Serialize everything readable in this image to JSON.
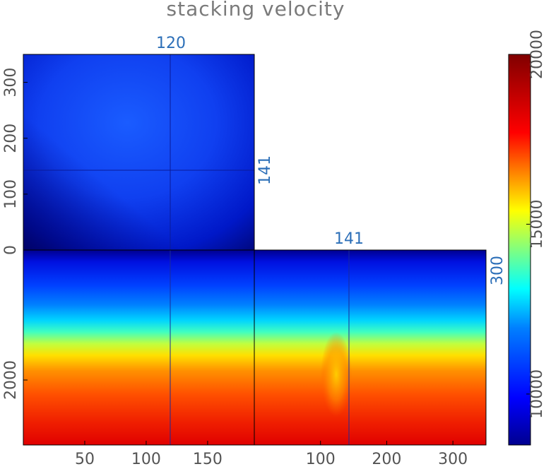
{
  "chart_data": {
    "type": "heatmap",
    "title": "stacking velocity",
    "colormap": "jet",
    "panels": {
      "top": {
        "x_range": [
          0,
          188
        ],
        "y_range": [
          0,
          350
        ],
        "axis": "y",
        "y_ticks": [
          0,
          100,
          200,
          300
        ]
      },
      "front": {
        "x_range": [
          0,
          188
        ],
        "x_ticks": [
          50,
          100,
          150
        ],
        "y_ticks": [
          2000
        ],
        "y_range": [
          0,
          2500
        ]
      },
      "side": {
        "x_range": [
          0,
          350
        ],
        "x_ticks": [
          100,
          200,
          300
        ]
      }
    },
    "slice_labels": {
      "top_panel": "120",
      "side_panel_top": "141",
      "top_right": "141",
      "side_right": "300"
    },
    "colorbar": {
      "range": [
        8500,
        20000
      ],
      "ticks": [
        10000,
        15000,
        20000
      ]
    }
  },
  "labels": {
    "title": "stacking velocity",
    "front_x_ticks": [
      "50",
      "100",
      "150"
    ],
    "side_x_ticks": [
      "100",
      "200",
      "300"
    ],
    "top_y_ticks": [
      "0",
      "100",
      "200",
      "300"
    ],
    "front_y_ticks": [
      "2000"
    ],
    "slice_top": "120",
    "slice_right_top": "141",
    "slice_side_header": "141",
    "slice_side_right": "300",
    "colorbar_ticks": [
      "10000",
      "15000",
      "20000"
    ]
  }
}
